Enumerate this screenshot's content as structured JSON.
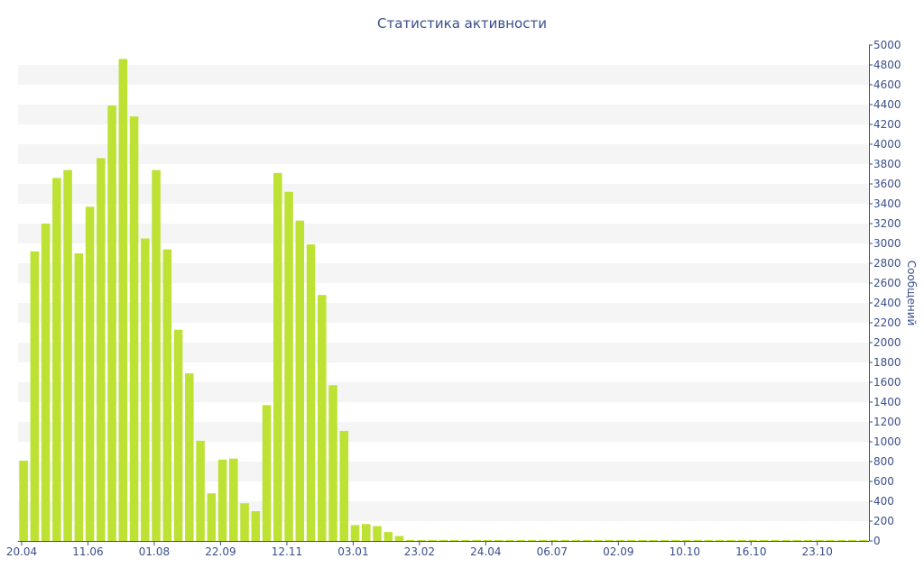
{
  "colors": {
    "bar": "#bde234",
    "band": "#f5f5f5",
    "axis": "#3a4f8a",
    "text": "#3a4f8a"
  },
  "chart_data": {
    "type": "bar",
    "title": "Статистика активности",
    "xlabel": "",
    "ylabel": "Сообщений",
    "ylim": [
      0,
      5000
    ],
    "y_ticks": [
      0,
      200,
      400,
      600,
      800,
      1000,
      1200,
      1400,
      1600,
      1800,
      2000,
      2200,
      2400,
      2600,
      2800,
      3000,
      3200,
      3400,
      3600,
      3800,
      4000,
      4200,
      4400,
      4600,
      4800,
      5000
    ],
    "y_axis_side": "right",
    "grid": "alternating horizontal bands",
    "legend": "none",
    "x_tick_labels": [
      {
        "index": 0,
        "label": "20.04"
      },
      {
        "index": 6,
        "label": "11.06"
      },
      {
        "index": 12,
        "label": "01.08"
      },
      {
        "index": 18,
        "label": "22.09"
      },
      {
        "index": 24,
        "label": "12.11"
      },
      {
        "index": 30,
        "label": "03.01"
      },
      {
        "index": 36,
        "label": "23.02"
      },
      {
        "index": 42,
        "label": "24.04"
      },
      {
        "index": 48,
        "label": "06.07"
      },
      {
        "index": 54,
        "label": "02.09"
      },
      {
        "index": 60,
        "label": "10.10"
      },
      {
        "index": 66,
        "label": "16.10"
      },
      {
        "index": 72,
        "label": "23.10"
      }
    ],
    "values": [
      810,
      2920,
      3200,
      3660,
      3740,
      2900,
      3370,
      3860,
      4390,
      4860,
      4280,
      3050,
      3740,
      2940,
      2130,
      1690,
      1010,
      480,
      820,
      830,
      380,
      300,
      1370,
      3710,
      3520,
      3230,
      2990,
      2480,
      1570,
      1110,
      160,
      170,
      150,
      90,
      50,
      10,
      10,
      10,
      10,
      10,
      10,
      10,
      10,
      10,
      10,
      10,
      10,
      10,
      10,
      10,
      10,
      10,
      10,
      10,
      10,
      10,
      10,
      10,
      10,
      10,
      10,
      10,
      10,
      10,
      10,
      10,
      10,
      10,
      10,
      10,
      10,
      10,
      10,
      10,
      10,
      10,
      10
    ]
  }
}
